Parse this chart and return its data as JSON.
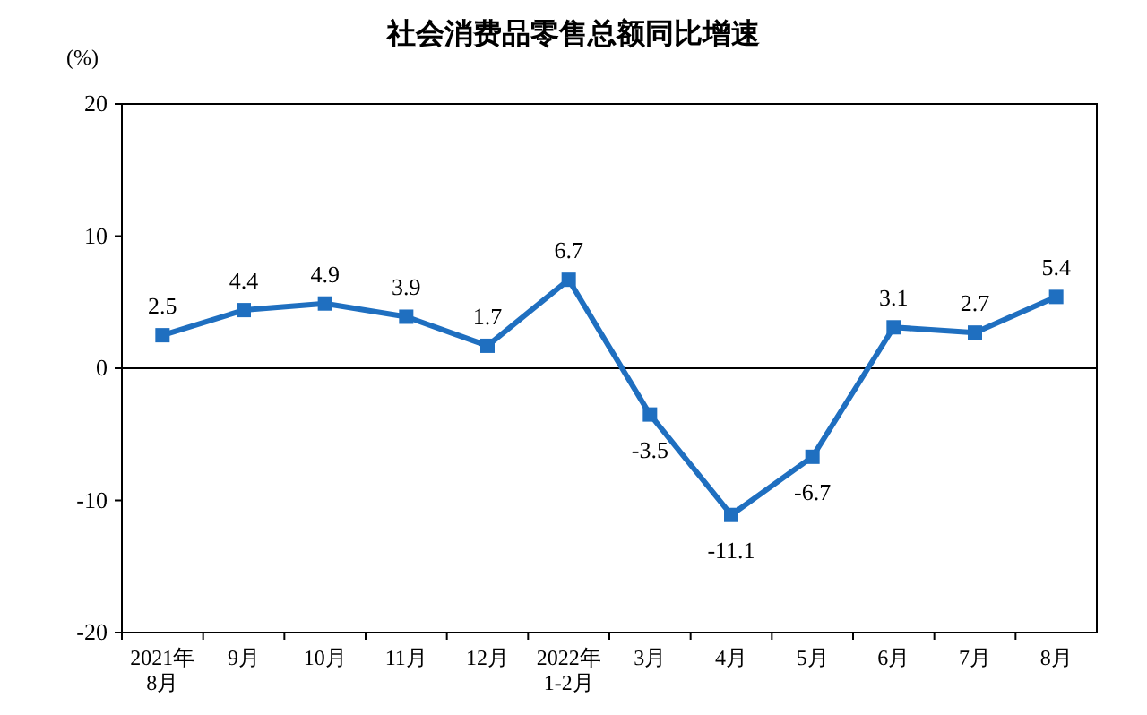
{
  "chart_data": {
    "type": "line",
    "title": "社会消费品零售总额同比增速",
    "ylabel": "(%)",
    "categories": [
      "2021年\n8月",
      "9月",
      "10月",
      "11月",
      "12月",
      "2022年\n1-2月",
      "3月",
      "4月",
      "5月",
      "6月",
      "7月",
      "8月"
    ],
    "series": [
      {
        "color": "#1f6fc0",
        "values": [
          2.5,
          4.4,
          4.9,
          3.9,
          1.7,
          6.7,
          -3.5,
          -11.1,
          -6.7,
          3.1,
          2.7,
          5.4
        ]
      }
    ],
    "ylim": [
      -20,
      20
    ],
    "yticks": [
      -20,
      -10,
      0,
      10,
      20
    ],
    "marker": "square",
    "line_style": "solid",
    "data_labels": true
  }
}
